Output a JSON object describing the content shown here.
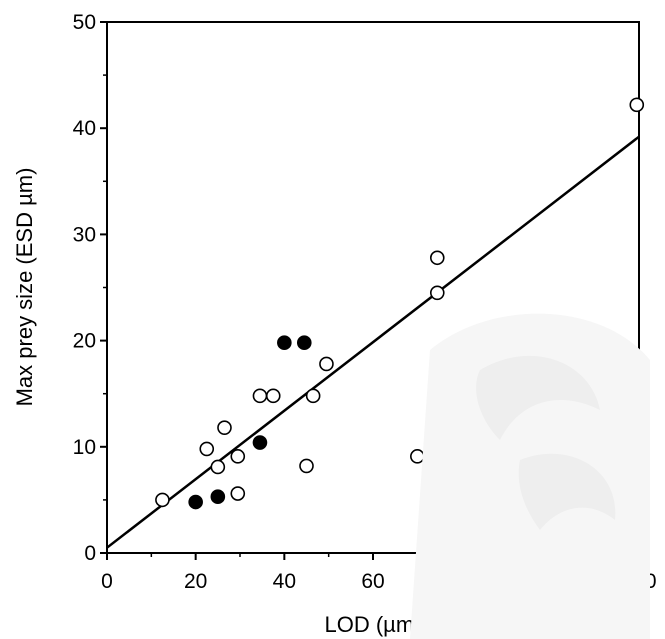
{
  "chart_data": {
    "type": "scatter",
    "title": "",
    "xlabel": "LOD (µm)",
    "ylabel": "Max prey size (ESD µm)",
    "xlim": [
      0,
      120
    ],
    "ylim": [
      0,
      50
    ],
    "xticks": [
      "0",
      "20",
      "40",
      "60",
      "80",
      "100",
      "120"
    ],
    "yticks": [
      "0",
      "10",
      "20",
      "30",
      "40",
      "50"
    ],
    "grid": false,
    "legend": "none",
    "series": [
      {
        "marker": "open-circle",
        "points": [
          {
            "x": 12.5,
            "y": 5.0
          },
          {
            "x": 22.5,
            "y": 9.8
          },
          {
            "x": 25.0,
            "y": 8.1
          },
          {
            "x": 26.5,
            "y": 11.8
          },
          {
            "x": 29.5,
            "y": 5.6
          },
          {
            "x": 29.5,
            "y": 9.1
          },
          {
            "x": 34.5,
            "y": 14.8
          },
          {
            "x": 37.5,
            "y": 14.8
          },
          {
            "x": 45.0,
            "y": 8.2
          },
          {
            "x": 46.5,
            "y": 14.8
          },
          {
            "x": 49.5,
            "y": 17.8
          },
          {
            "x": 70.0,
            "y": 9.1
          },
          {
            "x": 74.5,
            "y": 27.8
          },
          {
            "x": 74.5,
            "y": 24.5
          },
          {
            "x": 119.5,
            "y": 42.2
          }
        ]
      },
      {
        "marker": "filled-circle",
        "points": [
          {
            "x": 20.0,
            "y": 4.8
          },
          {
            "x": 25.0,
            "y": 5.3
          },
          {
            "x": 34.5,
            "y": 10.4
          },
          {
            "x": 40.0,
            "y": 19.8
          },
          {
            "x": 44.5,
            "y": 19.8
          }
        ]
      }
    ],
    "fit_line": {
      "x": [
        0,
        120
      ],
      "y": [
        0.5,
        39.2
      ]
    },
    "colors": {
      "axis": "#000000",
      "marker": "#000000",
      "watermark": "#f2f2f2"
    }
  }
}
